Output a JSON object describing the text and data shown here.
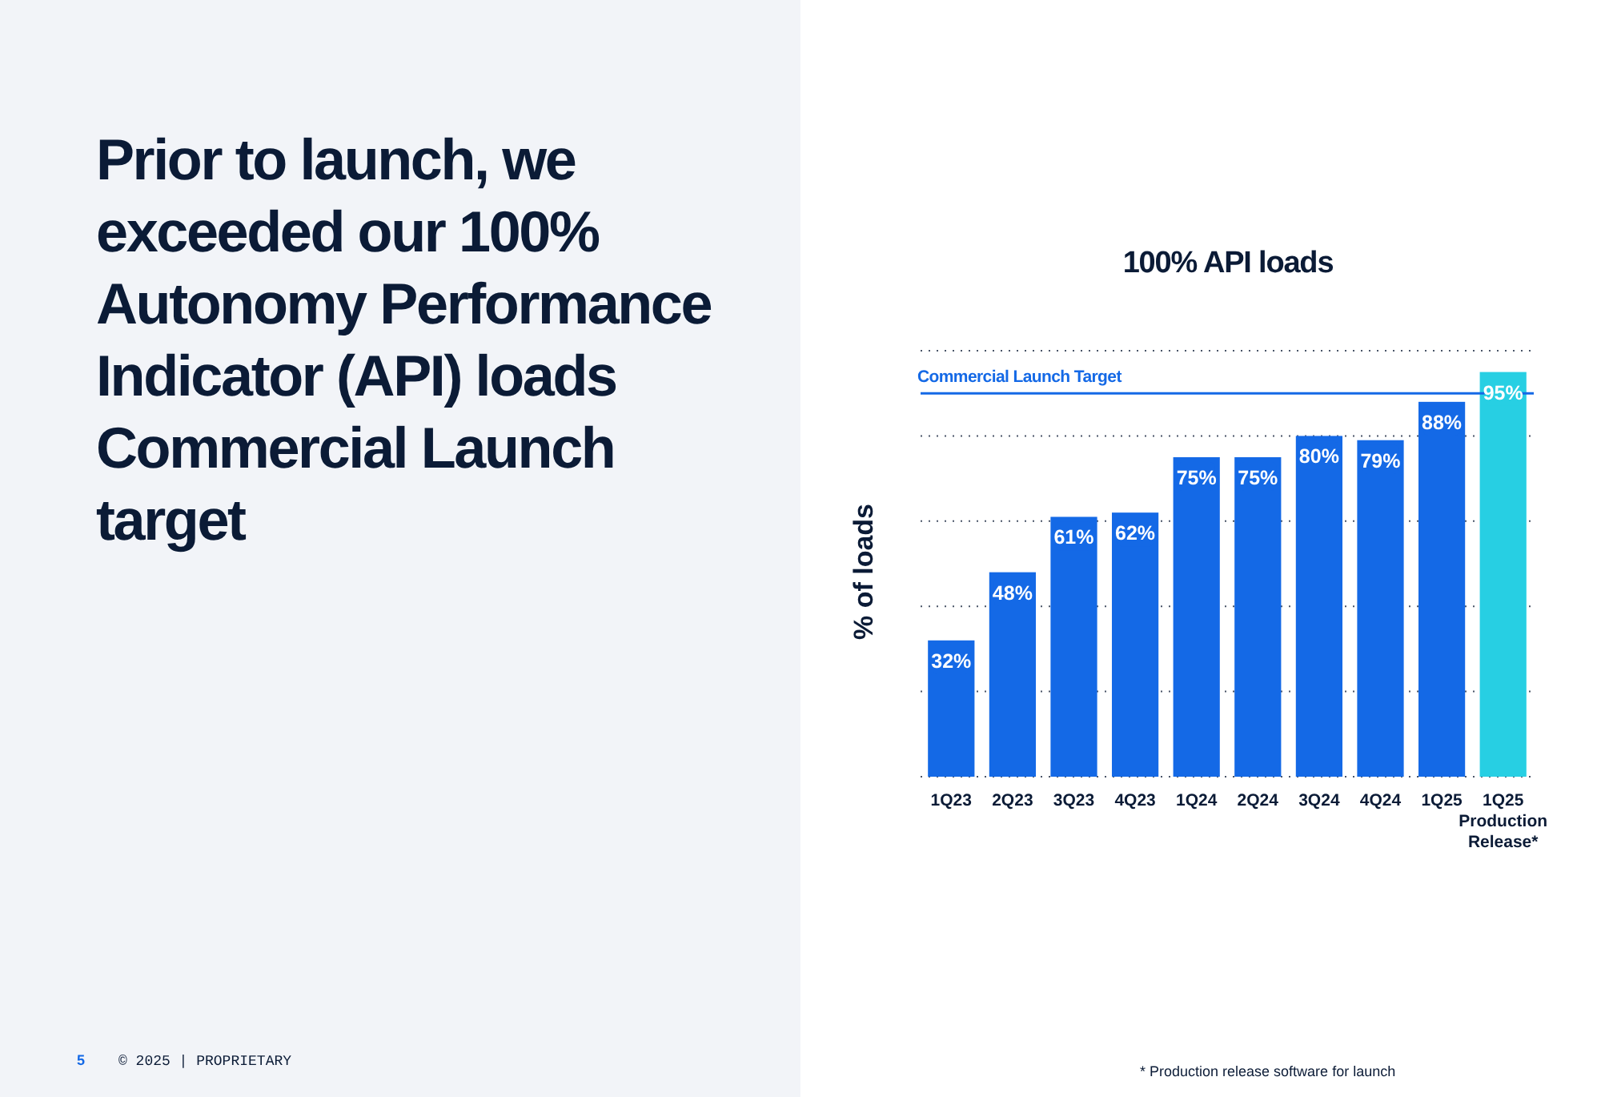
{
  "chart_data": {
    "type": "bar",
    "title": "100% API loads",
    "ylabel": "% of loads",
    "categories": [
      "1Q23",
      "2Q23",
      "3Q23",
      "4Q23",
      "1Q24",
      "2Q24",
      "3Q24",
      "4Q24",
      "1Q25",
      "1Q25 Production Release*"
    ],
    "values": [
      32,
      48,
      61,
      62,
      75,
      75,
      80,
      79,
      88,
      95
    ],
    "colors": [
      "#1469e6",
      "#1469e6",
      "#1469e6",
      "#1469e6",
      "#1469e6",
      "#1469e6",
      "#1469e6",
      "#1469e6",
      "#1469e6",
      "#27cfe3"
    ],
    "value_labels": [
      "32%",
      "48%",
      "61%",
      "62%",
      "75%",
      "75%",
      "80%",
      "79%",
      "88%",
      "95%"
    ],
    "grid": "y",
    "ref_lines": [
      {
        "axis": "y",
        "value": 90,
        "label": "Commercial Launch Target",
        "color": "#1469e6",
        "line_style": "solid"
      }
    ],
    "annotations": [
      "Prior to launch, we exceeded our 100% Autonomy Performance Indicator (API) loads Commercial Launch target",
      "* Production release software for launch",
      "5",
      "© 2025 | PROPRIETARY"
    ]
  }
}
